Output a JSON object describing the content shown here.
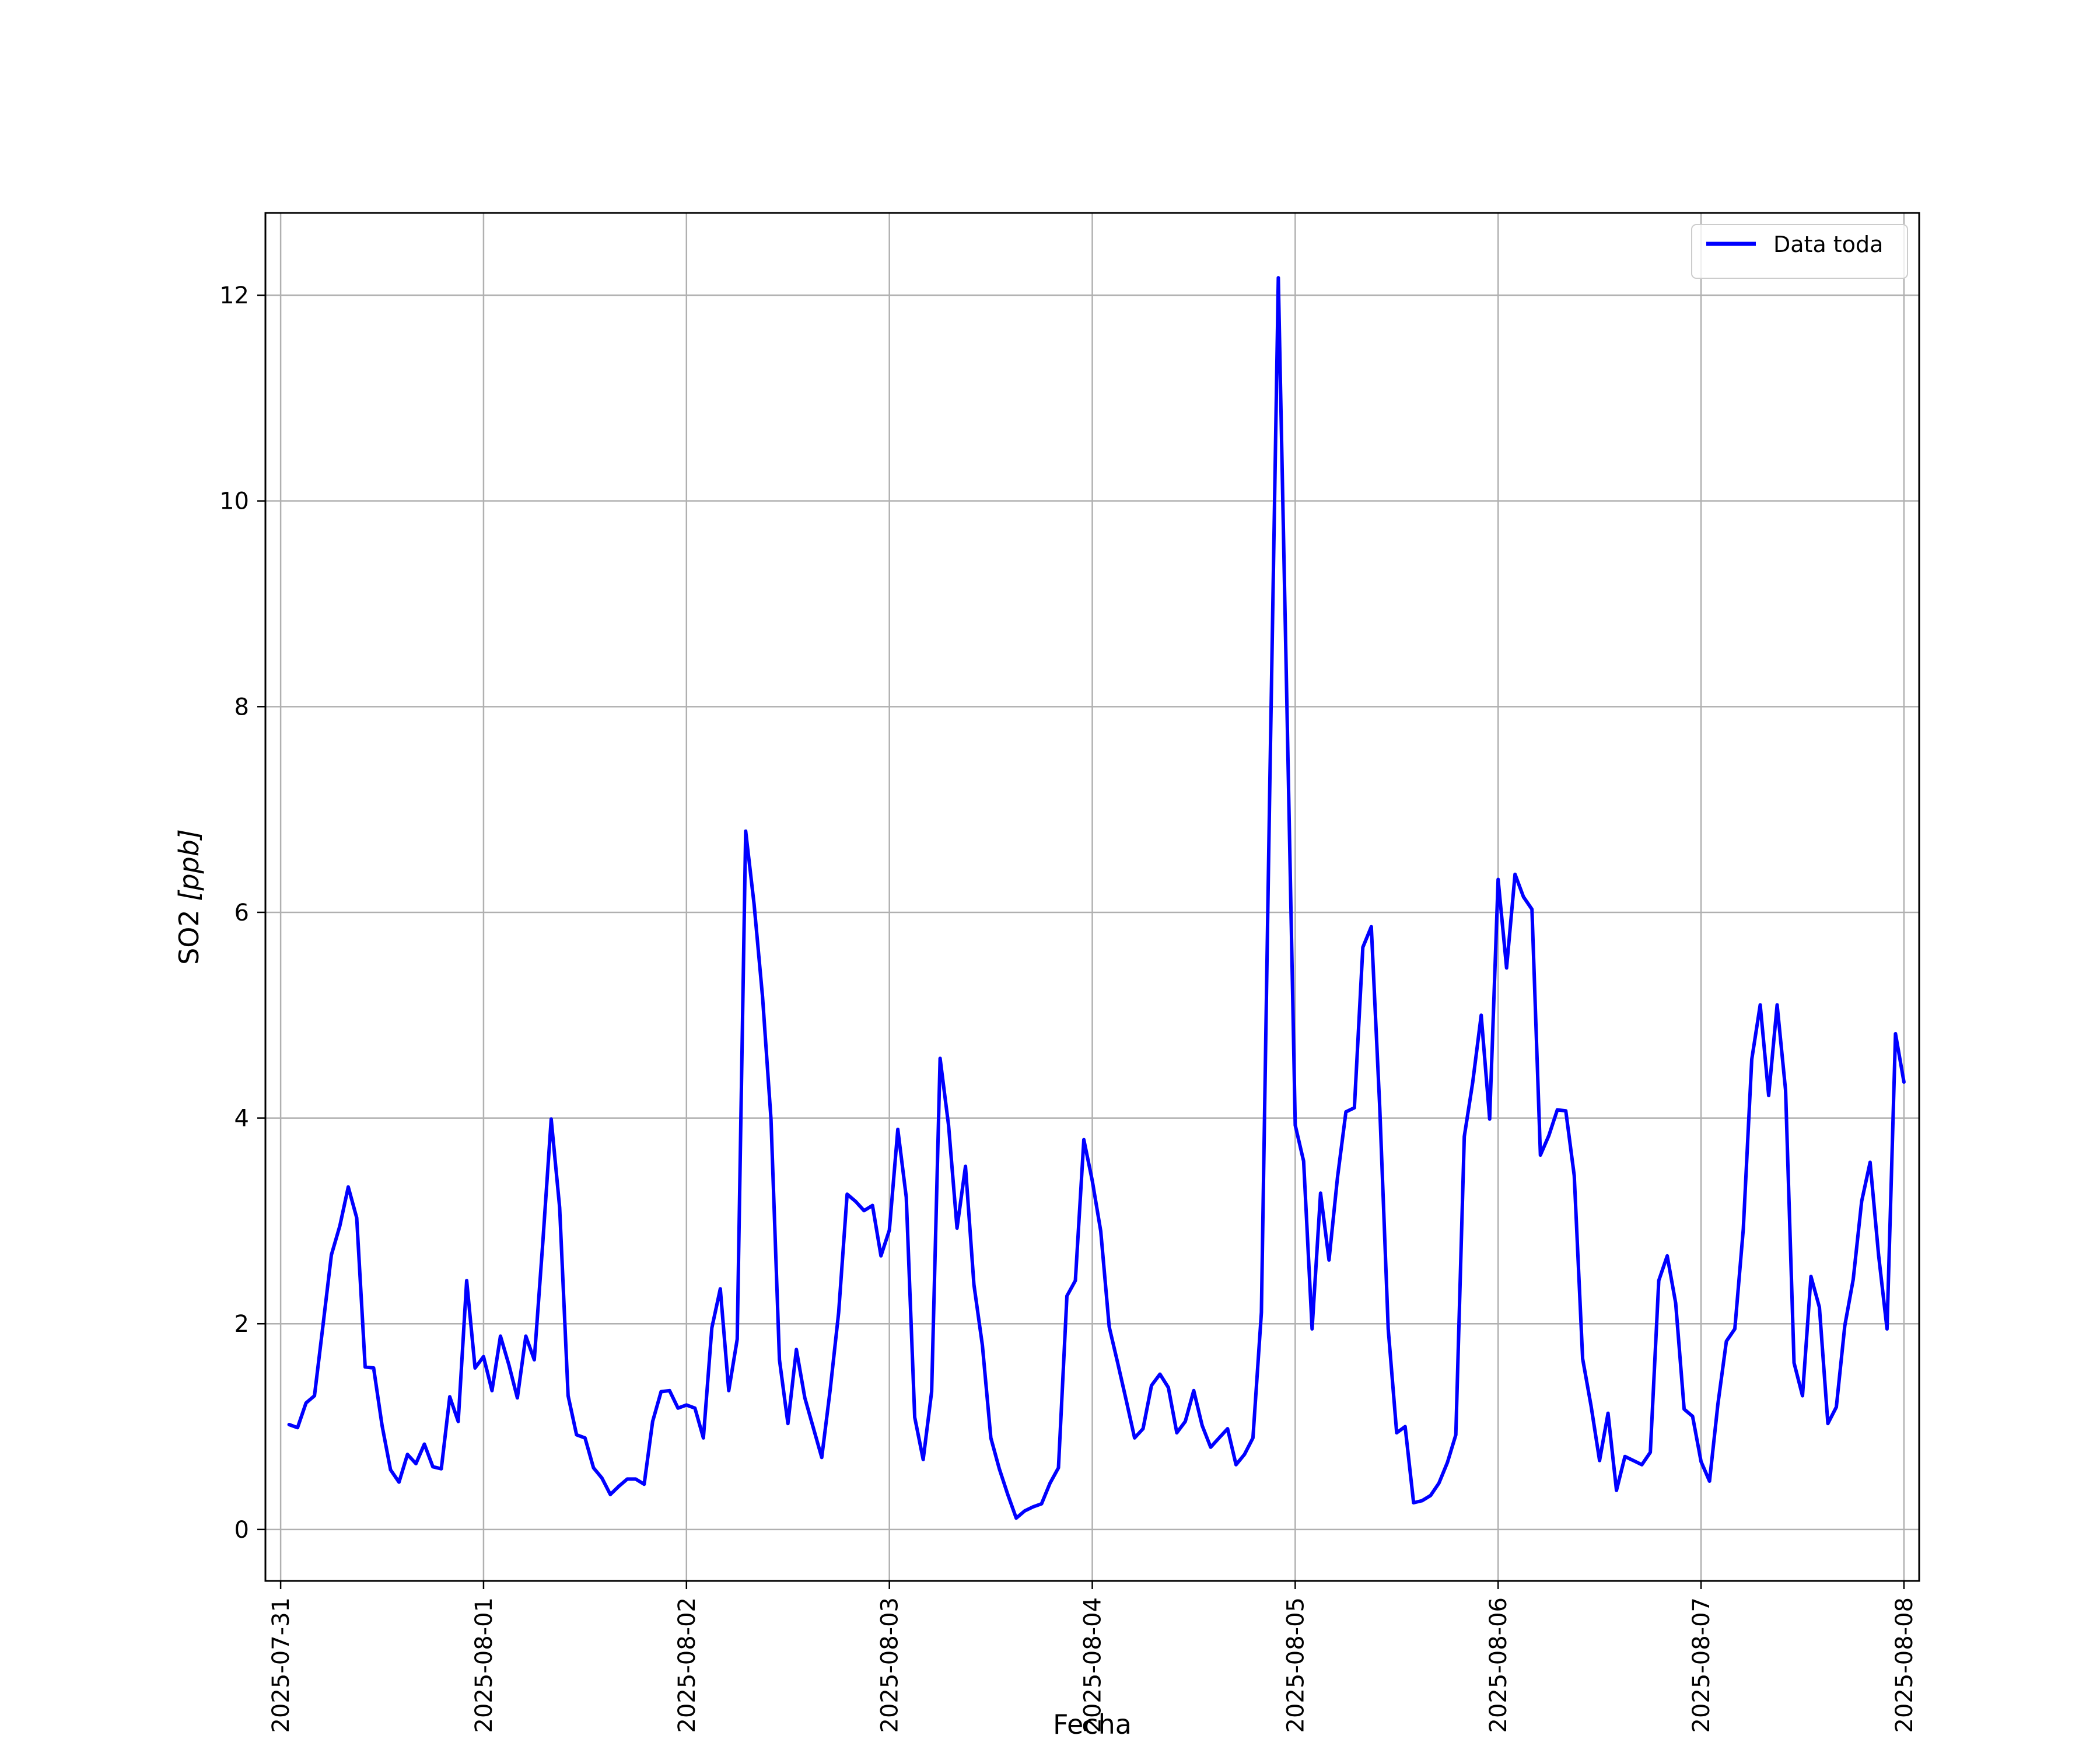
{
  "chart_data": {
    "type": "line",
    "xlabel": "Fecha",
    "ylabel": "SO2 [ppb]",
    "ylabel_prefix": "SO2 ",
    "ylabel_unit": "[ppb]",
    "x_scale": "date",
    "xlim": [
      "2025-07-30T22:12",
      "2025-08-08T01:48"
    ],
    "ylim": [
      -0.5,
      12.8
    ],
    "grid": true,
    "legend_position": "top-right",
    "x_ticks": [
      "2025-07-31",
      "2025-08-01",
      "2025-08-02",
      "2025-08-03",
      "2025-08-04",
      "2025-08-05",
      "2025-08-06",
      "2025-08-07",
      "2025-08-08"
    ],
    "y_ticks": [
      0,
      2,
      4,
      6,
      8,
      10,
      12
    ],
    "series": [
      {
        "name": "Data toda",
        "color": "#0000ff",
        "x": [
          "2025-07-31T01:00",
          "2025-07-31T02:00",
          "2025-07-31T03:00",
          "2025-07-31T04:00",
          "2025-07-31T05:00",
          "2025-07-31T06:00",
          "2025-07-31T07:00",
          "2025-07-31T08:00",
          "2025-07-31T09:00",
          "2025-07-31T10:00",
          "2025-07-31T11:00",
          "2025-07-31T12:00",
          "2025-07-31T13:00",
          "2025-07-31T14:00",
          "2025-07-31T15:00",
          "2025-07-31T16:00",
          "2025-07-31T17:00",
          "2025-07-31T18:00",
          "2025-07-31T19:00",
          "2025-07-31T20:00",
          "2025-07-31T21:00",
          "2025-07-31T22:00",
          "2025-07-31T23:00",
          "2025-08-01T00:00",
          "2025-08-01T01:00",
          "2025-08-01T02:00",
          "2025-08-01T03:00",
          "2025-08-01T04:00",
          "2025-08-01T05:00",
          "2025-08-01T06:00",
          "2025-08-01T07:00",
          "2025-08-01T08:00",
          "2025-08-01T09:00",
          "2025-08-01T10:00",
          "2025-08-01T11:00",
          "2025-08-01T12:00",
          "2025-08-01T13:00",
          "2025-08-01T14:00",
          "2025-08-01T15:00",
          "2025-08-01T16:00",
          "2025-08-01T17:00",
          "2025-08-01T18:00",
          "2025-08-01T19:00",
          "2025-08-01T20:00",
          "2025-08-01T21:00",
          "2025-08-01T22:00",
          "2025-08-01T23:00",
          "2025-08-02T00:00",
          "2025-08-02T01:00",
          "2025-08-02T02:00",
          "2025-08-02T03:00",
          "2025-08-02T04:00",
          "2025-08-02T05:00",
          "2025-08-02T06:00",
          "2025-08-02T07:00",
          "2025-08-02T08:00",
          "2025-08-02T09:00",
          "2025-08-02T10:00",
          "2025-08-02T11:00",
          "2025-08-02T12:00",
          "2025-08-02T13:00",
          "2025-08-02T14:00",
          "2025-08-02T15:00",
          "2025-08-02T16:00",
          "2025-08-02T17:00",
          "2025-08-02T18:00",
          "2025-08-02T19:00",
          "2025-08-02T20:00",
          "2025-08-02T21:00",
          "2025-08-02T22:00",
          "2025-08-02T23:00",
          "2025-08-03T00:00",
          "2025-08-03T01:00",
          "2025-08-03T02:00",
          "2025-08-03T03:00",
          "2025-08-03T04:00",
          "2025-08-03T05:00",
          "2025-08-03T06:00",
          "2025-08-03T07:00",
          "2025-08-03T08:00",
          "2025-08-03T09:00",
          "2025-08-03T10:00",
          "2025-08-03T11:00",
          "2025-08-03T12:00",
          "2025-08-03T13:00",
          "2025-08-03T14:00",
          "2025-08-03T15:00",
          "2025-08-03T16:00",
          "2025-08-03T17:00",
          "2025-08-03T18:00",
          "2025-08-03T19:00",
          "2025-08-03T20:00",
          "2025-08-03T21:00",
          "2025-08-03T22:00",
          "2025-08-03T23:00",
          "2025-08-04T00:00",
          "2025-08-04T01:00",
          "2025-08-04T02:00",
          "2025-08-04T03:00",
          "2025-08-04T04:00",
          "2025-08-04T05:00",
          "2025-08-04T06:00",
          "2025-08-04T07:00",
          "2025-08-04T08:00",
          "2025-08-04T09:00",
          "2025-08-04T10:00",
          "2025-08-04T11:00",
          "2025-08-04T12:00",
          "2025-08-04T13:00",
          "2025-08-04T14:00",
          "2025-08-04T15:00",
          "2025-08-04T16:00",
          "2025-08-04T17:00",
          "2025-08-04T18:00",
          "2025-08-04T19:00",
          "2025-08-04T20:00",
          "2025-08-04T21:00",
          "2025-08-04T22:00",
          "2025-08-04T23:00",
          "2025-08-05T00:00",
          "2025-08-05T01:00",
          "2025-08-05T02:00",
          "2025-08-05T03:00",
          "2025-08-05T04:00",
          "2025-08-05T05:00",
          "2025-08-05T06:00",
          "2025-08-05T07:00",
          "2025-08-05T08:00",
          "2025-08-05T09:00",
          "2025-08-05T10:00",
          "2025-08-05T11:00",
          "2025-08-05T12:00",
          "2025-08-05T13:00",
          "2025-08-05T14:00",
          "2025-08-05T15:00",
          "2025-08-05T16:00",
          "2025-08-05T17:00",
          "2025-08-05T18:00",
          "2025-08-05T19:00",
          "2025-08-05T20:00",
          "2025-08-05T21:00",
          "2025-08-05T22:00",
          "2025-08-05T23:00",
          "2025-08-06T00:00",
          "2025-08-06T01:00",
          "2025-08-06T02:00",
          "2025-08-06T03:00",
          "2025-08-06T04:00",
          "2025-08-06T05:00",
          "2025-08-06T06:00",
          "2025-08-06T07:00",
          "2025-08-06T08:00",
          "2025-08-06T09:00",
          "2025-08-06T10:00",
          "2025-08-06T11:00",
          "2025-08-06T12:00",
          "2025-08-06T13:00",
          "2025-08-06T14:00",
          "2025-08-06T15:00",
          "2025-08-06T16:00",
          "2025-08-06T17:00",
          "2025-08-06T18:00",
          "2025-08-06T19:00",
          "2025-08-06T20:00",
          "2025-08-06T21:00",
          "2025-08-06T22:00",
          "2025-08-06T23:00",
          "2025-08-07T00:00",
          "2025-08-07T01:00",
          "2025-08-07T02:00",
          "2025-08-07T03:00",
          "2025-08-07T04:00",
          "2025-08-07T05:00",
          "2025-08-07T06:00",
          "2025-08-07T07:00",
          "2025-08-07T08:00",
          "2025-08-07T09:00",
          "2025-08-07T10:00",
          "2025-08-07T11:00",
          "2025-08-07T12:00",
          "2025-08-07T13:00",
          "2025-08-07T14:00",
          "2025-08-07T15:00",
          "2025-08-07T16:00",
          "2025-08-07T17:00",
          "2025-08-07T18:00",
          "2025-08-07T19:00",
          "2025-08-07T20:00",
          "2025-08-07T21:00",
          "2025-08-07T22:00",
          "2025-08-07T23:00",
          "2025-08-08T00:00"
        ],
        "y": [
          1.02,
          0.99,
          1.23,
          1.3,
          1.98,
          2.67,
          2.95,
          3.33,
          3.03,
          1.58,
          1.57,
          1.01,
          0.58,
          0.46,
          0.73,
          0.64,
          0.83,
          0.61,
          0.59,
          1.29,
          1.05,
          2.42,
          1.57,
          1.68,
          1.35,
          1.88,
          1.6,
          1.28,
          1.88,
          1.65,
          2.78,
          3.99,
          3.13,
          1.3,
          0.92,
          0.89,
          0.6,
          0.5,
          0.34,
          0.42,
          0.49,
          0.49,
          0.44,
          1.05,
          1.34,
          1.35,
          1.18,
          1.21,
          1.18,
          0.89,
          1.96,
          2.34,
          1.35,
          1.85,
          6.79,
          6.08,
          5.18,
          3.99,
          1.65,
          1.03,
          1.75,
          1.28,
          0.99,
          0.7,
          1.36,
          2.11,
          3.26,
          3.19,
          3.1,
          3.15,
          2.66,
          2.91,
          3.89,
          3.23,
          1.09,
          0.68,
          1.34,
          4.58,
          3.93,
          2.93,
          3.53,
          2.38,
          1.79,
          0.89,
          0.59,
          0.34,
          0.11,
          0.18,
          0.22,
          0.25,
          0.45,
          0.6,
          2.27,
          2.42,
          3.79,
          3.39,
          2.9,
          1.97,
          1.62,
          1.26,
          0.89,
          0.98,
          1.4,
          1.51,
          1.38,
          0.94,
          1.05,
          1.35,
          1.01,
          0.8,
          0.89,
          0.98,
          0.63,
          0.73,
          0.89,
          2.11,
          7.27,
          12.17,
          8.08,
          3.93,
          3.58,
          1.95,
          3.27,
          2.62,
          3.42,
          4.06,
          4.1,
          5.66,
          5.86,
          4.1,
          1.95,
          0.94,
          1.0,
          0.26,
          0.28,
          0.33,
          0.45,
          0.65,
          0.92,
          3.82,
          4.35,
          5.0,
          3.99,
          6.32,
          5.46,
          6.37,
          6.15,
          6.03,
          3.64,
          3.83,
          4.08,
          4.07,
          3.44,
          1.66,
          1.2,
          0.67,
          1.13,
          0.38,
          0.71,
          0.67,
          0.63,
          0.75,
          2.42,
          2.66,
          2.2,
          1.17,
          1.1,
          0.66,
          0.47,
          1.22,
          1.83,
          1.95,
          2.92,
          4.57,
          5.1,
          4.22,
          5.1,
          4.27,
          1.62,
          1.3,
          2.46,
          2.16,
          1.03,
          1.19,
          1.98,
          2.43,
          3.19,
          3.57,
          2.67,
          1.95,
          4.82,
          4.35
        ]
      }
    ]
  }
}
